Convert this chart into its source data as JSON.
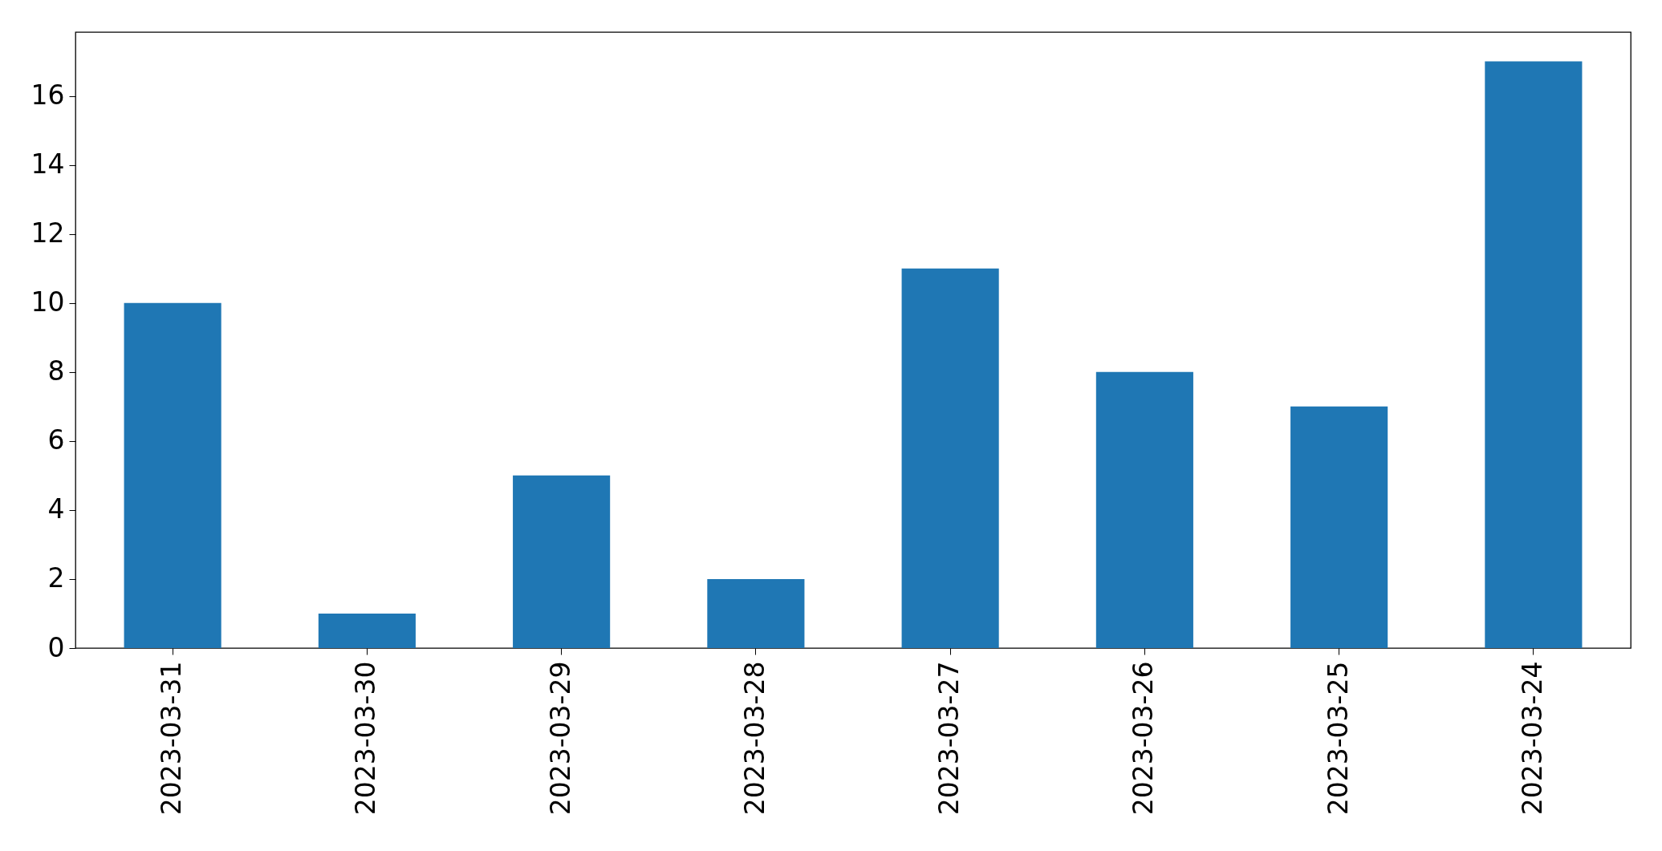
{
  "chart_data": {
    "type": "bar",
    "categories": [
      "2023-03-31",
      "2023-03-30",
      "2023-03-29",
      "2023-03-28",
      "2023-03-27",
      "2023-03-26",
      "2023-03-25",
      "2023-03-24"
    ],
    "values": [
      10,
      1,
      5,
      2,
      11,
      8,
      7,
      17
    ],
    "color": "#1f77b4",
    "ylim": [
      0,
      17.85
    ],
    "yticks": [
      0,
      2,
      4,
      6,
      8,
      10,
      12,
      14,
      16
    ],
    "grid": false
  }
}
